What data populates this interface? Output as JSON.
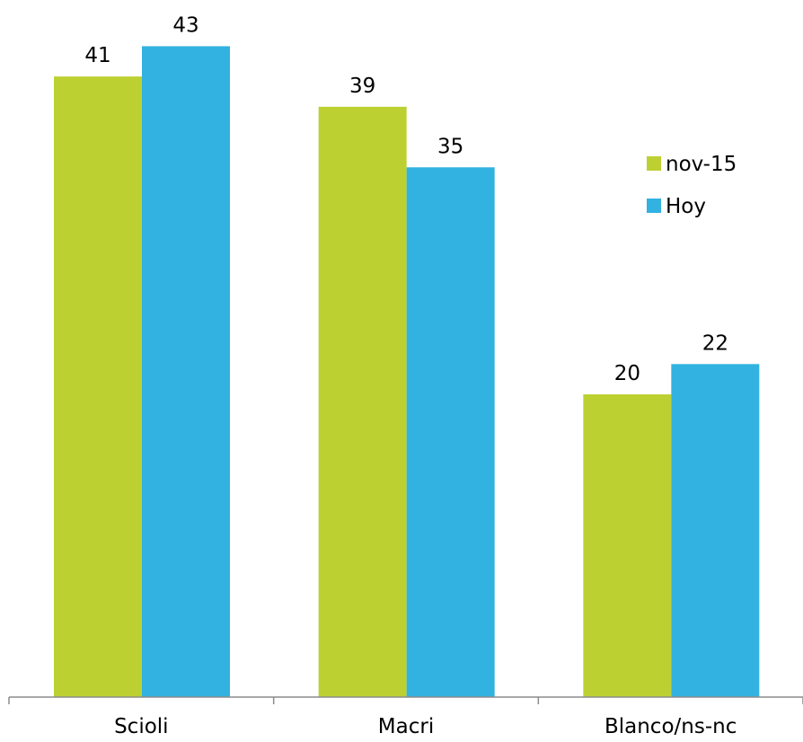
{
  "chart_data": {
    "type": "bar",
    "title": "",
    "xlabel": "",
    "ylabel": "",
    "categories": [
      "Scioli",
      "Macri",
      "Blanco/ns-nc"
    ],
    "series": [
      {
        "name": "nov-15",
        "values": [
          41,
          39,
          20
        ],
        "color": "#bcd131"
      },
      {
        "name": "Hoy",
        "values": [
          43,
          35,
          22
        ],
        "color": "#31b2e0"
      }
    ],
    "ylim": [
      0,
      43.9
    ],
    "grid": false,
    "legend_position": "right"
  }
}
